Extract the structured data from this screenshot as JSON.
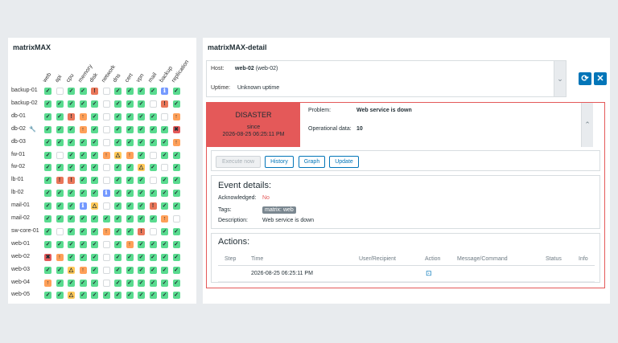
{
  "left_panel": {
    "title": "matrixMAX",
    "columns": [
      "web",
      "api",
      "cpu",
      "memory",
      "disk",
      "network",
      "dns",
      "cert",
      "vpn",
      "mail",
      "backup",
      "replication"
    ],
    "rows": [
      {
        "host": "backup-01",
        "maintenance": false,
        "cells": [
          "ok",
          "empty",
          "ok",
          "ok",
          "high",
          "empty",
          "ok",
          "ok",
          "ok",
          "ok",
          "info",
          "ok"
        ]
      },
      {
        "host": "backup-02",
        "maintenance": false,
        "cells": [
          "ok",
          "ok",
          "ok",
          "ok",
          "ok",
          "empty",
          "ok",
          "ok",
          "ok",
          "empty",
          "high",
          "ok"
        ]
      },
      {
        "host": "db-01",
        "maintenance": false,
        "cells": [
          "ok",
          "ok",
          "high",
          "avg",
          "ok",
          "empty",
          "ok",
          "ok",
          "ok",
          "ok",
          "empty",
          "avg"
        ]
      },
      {
        "host": "db-02",
        "maintenance": true,
        "cells": [
          "ok",
          "ok",
          "ok",
          "avg",
          "ok",
          "empty",
          "ok",
          "ok",
          "ok",
          "ok",
          "ok",
          "disaster"
        ]
      },
      {
        "host": "db-03",
        "maintenance": false,
        "cells": [
          "ok",
          "ok",
          "ok",
          "ok",
          "ok",
          "empty",
          "ok",
          "ok",
          "ok",
          "ok",
          "ok",
          "avg"
        ]
      },
      {
        "host": "fw-01",
        "maintenance": false,
        "cells": [
          "ok",
          "empty",
          "ok",
          "ok",
          "ok",
          "avg",
          "warn",
          "avg",
          "ok",
          "empty",
          "ok",
          "ok"
        ]
      },
      {
        "host": "fw-02",
        "maintenance": false,
        "cells": [
          "ok",
          "ok",
          "ok",
          "ok",
          "ok",
          "empty",
          "ok",
          "ok",
          "warn",
          "ok",
          "empty",
          "ok"
        ]
      },
      {
        "host": "lb-01",
        "maintenance": false,
        "cells": [
          "ok",
          "high",
          "high",
          "ok",
          "ok",
          "empty",
          "ok",
          "ok",
          "ok",
          "empty",
          "ok",
          "ok"
        ]
      },
      {
        "host": "lb-02",
        "maintenance": false,
        "cells": [
          "ok",
          "ok",
          "ok",
          "ok",
          "ok",
          "info",
          "ok",
          "ok",
          "ok",
          "ok",
          "ok",
          "ok"
        ]
      },
      {
        "host": "mail-01",
        "maintenance": false,
        "cells": [
          "ok",
          "ok",
          "ok",
          "info",
          "warn",
          "empty",
          "ok",
          "ok",
          "ok",
          "high",
          "ok",
          "ok"
        ]
      },
      {
        "host": "mail-02",
        "maintenance": false,
        "cells": [
          "ok",
          "ok",
          "ok",
          "ok",
          "ok",
          "ok",
          "ok",
          "ok",
          "ok",
          "ok",
          "avg",
          "empty"
        ]
      },
      {
        "host": "sw-core-01",
        "maintenance": false,
        "cells": [
          "ok",
          "empty",
          "ok",
          "ok",
          "ok",
          "avg",
          "ok",
          "ok",
          "high",
          "empty",
          "ok",
          "ok"
        ]
      },
      {
        "host": "web-01",
        "maintenance": false,
        "cells": [
          "ok",
          "ok",
          "ok",
          "ok",
          "ok",
          "empty",
          "ok",
          "avg",
          "ok",
          "ok",
          "ok",
          "ok"
        ]
      },
      {
        "host": "web-02",
        "maintenance": false,
        "cells": [
          "disaster",
          "avg",
          "ok",
          "ok",
          "ok",
          "empty",
          "ok",
          "ok",
          "ok",
          "ok",
          "ok",
          "ok"
        ]
      },
      {
        "host": "web-03",
        "maintenance": false,
        "cells": [
          "ok",
          "ok",
          "warn",
          "avg",
          "ok",
          "empty",
          "ok",
          "ok",
          "ok",
          "ok",
          "ok",
          "ok"
        ]
      },
      {
        "host": "web-04",
        "maintenance": false,
        "cells": [
          "avg",
          "ok",
          "ok",
          "ok",
          "ok",
          "empty",
          "ok",
          "ok",
          "ok",
          "ok",
          "ok",
          "ok"
        ]
      },
      {
        "host": "web-05",
        "maintenance": false,
        "cells": [
          "ok",
          "ok",
          "warn",
          "ok",
          "ok",
          "ok",
          "ok",
          "ok",
          "ok",
          "ok",
          "ok",
          "ok"
        ]
      }
    ],
    "symbols": {
      "ok": "✓",
      "high": "!",
      "avg": "↑",
      "warn": "△",
      "disaster": "✖",
      "info": "ℹ",
      "empty": ""
    }
  },
  "right_panel": {
    "title": "matrixMAX-detail",
    "host_label": "Host:",
    "host_name": "web-02",
    "host_alias": "(web-02)",
    "uptime_label": "Uptime:",
    "uptime_value": "Unknown uptime",
    "severity": "DISASTER",
    "since_label": "since",
    "since_time": "2026-08-25 06:25:11 PM",
    "problem_label": "Problem:",
    "problem_value": "Web service is down",
    "opdata_label": "Operational data:",
    "opdata_value": "10",
    "buttons": {
      "execute": "Execute now",
      "history": "History",
      "graph": "Graph",
      "update": "Update"
    },
    "event_title": "Event details:",
    "ack_label": "Acknowledged:",
    "ack_value": "No",
    "tags_label": "Tags:",
    "tag_value": "matrix: web",
    "desc_label": "Description:",
    "desc_value": "Web service is down",
    "actions_title": "Actions:",
    "action_headers": [
      "Step",
      "Time",
      "User/Recipient",
      "Action",
      "Message/Command",
      "Status",
      "Info"
    ],
    "action_row_time": "2026-08-25 06:25:11 PM",
    "colors": {
      "disaster": "#e45959",
      "accent": "#0275b8",
      "ok": "#59db8f"
    }
  }
}
